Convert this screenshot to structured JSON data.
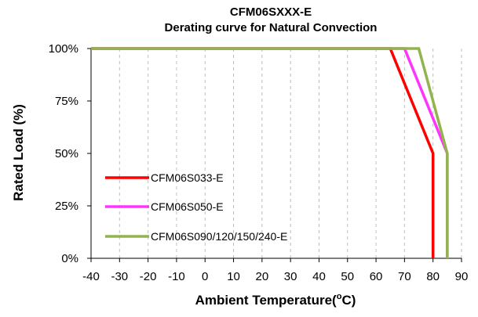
{
  "chart_data": {
    "type": "line",
    "title": "CFM06SXXX-E",
    "subtitle": "Derating curve for Natural Convection",
    "xlabel": "Ambient Temperature(",
    "xlabel_sup": "o",
    "xlabel_end": "C)",
    "ylabel": "Rated Load (%)",
    "xlim": [
      -40,
      90
    ],
    "ylim": [
      0,
      100
    ],
    "x_ticks": [
      -40,
      -30,
      -20,
      -10,
      0,
      10,
      20,
      30,
      40,
      50,
      60,
      70,
      80,
      90
    ],
    "y_ticks": [
      0,
      25,
      50,
      75,
      100
    ],
    "y_tick_labels": [
      "0%",
      "25%",
      "50%",
      "75%",
      "100%"
    ],
    "grid": "vertical-dashed",
    "legend": "bottom-left",
    "series": [
      {
        "name": "CFM06S033-E",
        "color": "#ff0000",
        "x": [
          -40,
          65,
          80,
          80
        ],
        "y": [
          100,
          100,
          50,
          0
        ]
      },
      {
        "name": "CFM06S050-E",
        "color": "#ff33ff",
        "x": [
          -40,
          70,
          85,
          85
        ],
        "y": [
          100,
          100,
          50,
          0
        ]
      },
      {
        "name": "CFM06S090/120/150/240-E",
        "color": "#92b44e",
        "x": [
          -40,
          75,
          85,
          85
        ],
        "y": [
          100,
          100,
          50,
          0
        ]
      }
    ]
  }
}
